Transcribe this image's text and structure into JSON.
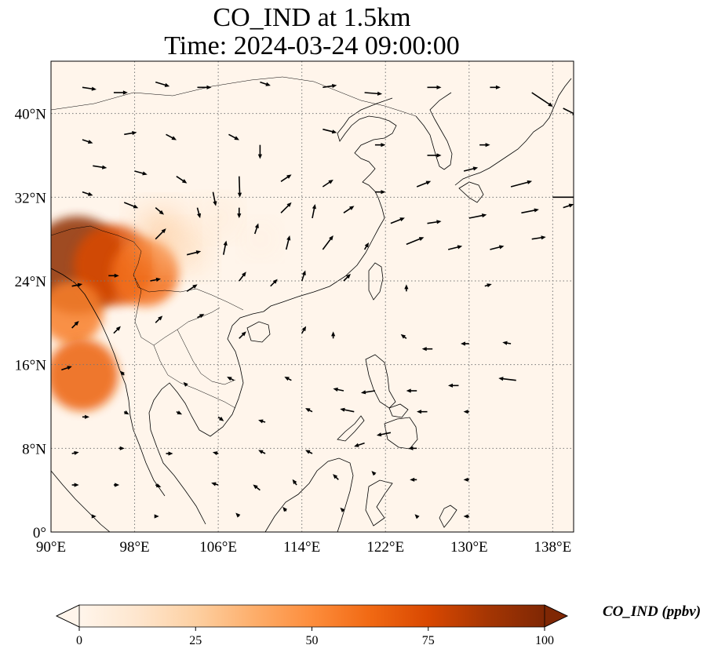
{
  "title": {
    "line1": "CO_IND at 1.5km",
    "line2": "Time: 2024-03-24 09:00:00"
  },
  "map": {
    "lon_range": [
      90,
      140
    ],
    "lat_range": [
      0,
      45
    ],
    "lon_ticks": [
      {
        "value": 90,
        "label": "90°E"
      },
      {
        "value": 98,
        "label": "98°E"
      },
      {
        "value": 106,
        "label": "106°E"
      },
      {
        "value": 114,
        "label": "114°E"
      },
      {
        "value": 122,
        "label": "122°E"
      },
      {
        "value": 130,
        "label": "130°E"
      },
      {
        "value": 138,
        "label": "138°E"
      }
    ],
    "lat_ticks": [
      {
        "value": 0,
        "label": "0°"
      },
      {
        "value": 8,
        "label": "8°N"
      },
      {
        "value": 16,
        "label": "16°N"
      },
      {
        "value": 24,
        "label": "24°N"
      },
      {
        "value": 32,
        "label": "32°N"
      },
      {
        "value": 40,
        "label": "40°N"
      }
    ],
    "gridlines": true,
    "background_color": "#fff5eb"
  },
  "colorbar": {
    "label": "CO_IND (ppbv)",
    "min": 0,
    "max": 100,
    "extend": "both",
    "ticks": [
      {
        "value": 0,
        "label": "0"
      },
      {
        "value": 25,
        "label": "25"
      },
      {
        "value": 50,
        "label": "50"
      },
      {
        "value": 75,
        "label": "75"
      },
      {
        "value": 100,
        "label": "100"
      }
    ],
    "colormap": [
      "#fff5eb",
      "#fee6ce",
      "#fdd0a2",
      "#fdae6b",
      "#fd8d3c",
      "#f16913",
      "#d94801",
      "#a63603",
      "#7f2704"
    ]
  },
  "plumes": [
    {
      "lon": 92.5,
      "lat": 25.5,
      "value": 95
    },
    {
      "lon": 96,
      "lat": 25.5,
      "value": 75
    },
    {
      "lon": 99,
      "lat": 24.8,
      "value": 60
    },
    {
      "lon": 92,
      "lat": 21,
      "value": 55
    },
    {
      "lon": 93,
      "lat": 15,
      "value": 65
    },
    {
      "lon": 100.5,
      "lat": 28.5,
      "value": 30
    },
    {
      "lon": 103,
      "lat": 27,
      "value": 22
    },
    {
      "lon": 106,
      "lat": 30,
      "value": 15
    },
    {
      "lon": 110,
      "lat": 28,
      "value": 10
    }
  ],
  "wind_vectors": [
    {
      "lon": 93,
      "lat": 42.5,
      "u": 2,
      "v": -0.3
    },
    {
      "lon": 96,
      "lat": 42,
      "u": 2,
      "v": 0
    },
    {
      "lon": 100,
      "lat": 43,
      "u": 2,
      "v": -0.6
    },
    {
      "lon": 104,
      "lat": 42.5,
      "u": 2,
      "v": 0
    },
    {
      "lon": 110,
      "lat": 43,
      "u": 1.5,
      "v": -0.5
    },
    {
      "lon": 116,
      "lat": 42.5,
      "u": 2,
      "v": 0.3
    },
    {
      "lon": 120,
      "lat": 42,
      "u": 2.5,
      "v": -0.2
    },
    {
      "lon": 126,
      "lat": 42.5,
      "u": 2,
      "v": 0
    },
    {
      "lon": 132,
      "lat": 42.5,
      "u": 1.5,
      "v": 0
    },
    {
      "lon": 136,
      "lat": 42,
      "u": 3,
      "v": -2
    },
    {
      "lon": 139,
      "lat": 40.5,
      "u": 2,
      "v": -1
    },
    {
      "lon": 93,
      "lat": 37.5,
      "u": 1.5,
      "v": -0.5
    },
    {
      "lon": 97,
      "lat": 38,
      "u": 1.8,
      "v": 0.3
    },
    {
      "lon": 101,
      "lat": 38,
      "u": 1.5,
      "v": -0.8
    },
    {
      "lon": 107,
      "lat": 38,
      "u": 1.5,
      "v": -0.8
    },
    {
      "lon": 110,
      "lat": 37,
      "u": 0,
      "v": -2
    },
    {
      "lon": 116,
      "lat": 38.5,
      "u": 2,
      "v": -0.5
    },
    {
      "lon": 121,
      "lat": 37,
      "u": 1.5,
      "v": 0
    },
    {
      "lon": 126,
      "lat": 36,
      "u": 2,
      "v": 0
    },
    {
      "lon": 131,
      "lat": 37,
      "u": 1.5,
      "v": 0
    },
    {
      "lon": 94,
      "lat": 35,
      "u": 2,
      "v": -0.3
    },
    {
      "lon": 98,
      "lat": 34.5,
      "u": 1.8,
      "v": -0.5
    },
    {
      "lon": 102,
      "lat": 34,
      "u": 1.5,
      "v": -1
    },
    {
      "lon": 105.5,
      "lat": 32.5,
      "u": 0.4,
      "v": -2
    },
    {
      "lon": 108,
      "lat": 34,
      "u": 0.1,
      "v": -3
    },
    {
      "lon": 112,
      "lat": 33.5,
      "u": 1.5,
      "v": 1
    },
    {
      "lon": 116,
      "lat": 33,
      "u": 1.5,
      "v": 1
    },
    {
      "lon": 121,
      "lat": 32.5,
      "u": 1.5,
      "v": 0
    },
    {
      "lon": 125,
      "lat": 33,
      "u": 2,
      "v": 0.8
    },
    {
      "lon": 129.5,
      "lat": 34.5,
      "u": 2,
      "v": 0.5
    },
    {
      "lon": 134,
      "lat": 33,
      "u": 3,
      "v": 0.8
    },
    {
      "lon": 138,
      "lat": 32,
      "u": 4,
      "v": 0
    },
    {
      "lon": 93,
      "lat": 32.5,
      "u": 1.5,
      "v": -0.5
    },
    {
      "lon": 97,
      "lat": 31.5,
      "u": 2,
      "v": -0.8
    },
    {
      "lon": 100,
      "lat": 31,
      "u": 1.2,
      "v": -1
    },
    {
      "lon": 104,
      "lat": 31,
      "u": 0.4,
      "v": -1.5
    },
    {
      "lon": 108,
      "lat": 31,
      "u": 0,
      "v": -1.5
    },
    {
      "lon": 112,
      "lat": 30.5,
      "u": 1.5,
      "v": 1.5
    },
    {
      "lon": 115,
      "lat": 30,
      "u": 0.4,
      "v": 2
    },
    {
      "lon": 118,
      "lat": 30.5,
      "u": 1.5,
      "v": 1
    },
    {
      "lon": 122.5,
      "lat": 29.5,
      "u": 2,
      "v": 0.8
    },
    {
      "lon": 126,
      "lat": 29.5,
      "u": 2,
      "v": 0.3
    },
    {
      "lon": 130,
      "lat": 30,
      "u": 2.5,
      "v": 0.5
    },
    {
      "lon": 135,
      "lat": 30.5,
      "u": 2.5,
      "v": 0.5
    },
    {
      "lon": 139,
      "lat": 31,
      "u": 1.5,
      "v": 0.5
    },
    {
      "lon": 100,
      "lat": 28,
      "u": 1.5,
      "v": 1.5
    },
    {
      "lon": 103,
      "lat": 26.5,
      "u": 2,
      "v": 0.5
    },
    {
      "lon": 106.5,
      "lat": 26.5,
      "u": 0.4,
      "v": 2
    },
    {
      "lon": 109.5,
      "lat": 28.5,
      "u": 0.5,
      "v": 1.5
    },
    {
      "lon": 112.5,
      "lat": 27,
      "u": 0.5,
      "v": 2
    },
    {
      "lon": 116,
      "lat": 27,
      "u": 1.5,
      "v": 2
    },
    {
      "lon": 120,
      "lat": 27,
      "u": 0.6,
      "v": 1
    },
    {
      "lon": 124,
      "lat": 27.5,
      "u": 2.5,
      "v": 1
    },
    {
      "lon": 128,
      "lat": 27,
      "u": 2,
      "v": 0.5
    },
    {
      "lon": 132,
      "lat": 27,
      "u": 2,
      "v": 0.5
    },
    {
      "lon": 136,
      "lat": 28,
      "u": 2,
      "v": 0.3
    },
    {
      "lon": 92,
      "lat": 23.5,
      "u": 1.5,
      "v": 0.3
    },
    {
      "lon": 95.5,
      "lat": 24.5,
      "u": 1.5,
      "v": 0
    },
    {
      "lon": 99.5,
      "lat": 24,
      "u": 1.5,
      "v": 0.3
    },
    {
      "lon": 103,
      "lat": 23,
      "u": 1.5,
      "v": 1
    },
    {
      "lon": 108,
      "lat": 24,
      "u": 1,
      "v": 1.3
    },
    {
      "lon": 111,
      "lat": 23.5,
      "u": 1,
      "v": 1
    },
    {
      "lon": 114,
      "lat": 24,
      "u": 0.5,
      "v": 1.5
    },
    {
      "lon": 118,
      "lat": 24,
      "u": 1,
      "v": 1
    },
    {
      "lon": 124,
      "lat": 23,
      "u": 0,
      "v": 1
    },
    {
      "lon": 131.5,
      "lat": 23.5,
      "u": 1,
      "v": 0.3
    },
    {
      "lon": 92,
      "lat": 19.5,
      "u": 1,
      "v": 1
    },
    {
      "lon": 96,
      "lat": 19,
      "u": 1,
      "v": 1
    },
    {
      "lon": 100,
      "lat": 20,
      "u": 1,
      "v": 1
    },
    {
      "lon": 104,
      "lat": 20.5,
      "u": 1,
      "v": 0.5
    },
    {
      "lon": 108,
      "lat": 18.5,
      "u": 1,
      "v": 1
    },
    {
      "lon": 114,
      "lat": 19,
      "u": 0.6,
      "v": 1
    },
    {
      "lon": 117,
      "lat": 18.5,
      "u": 0,
      "v": 1
    },
    {
      "lon": 124,
      "lat": 18.5,
      "u": -0.8,
      "v": 0.6
    },
    {
      "lon": 126.5,
      "lat": 17.5,
      "u": -1.5,
      "v": 0
    },
    {
      "lon": 130,
      "lat": 18,
      "u": -1.2,
      "v": 0
    },
    {
      "lon": 134,
      "lat": 18,
      "u": -1.2,
      "v": 0.2
    },
    {
      "lon": 91,
      "lat": 15.5,
      "u": 1.5,
      "v": 0.5
    },
    {
      "lon": 97,
      "lat": 15,
      "u": -0.6,
      "v": 0.6
    },
    {
      "lon": 103,
      "lat": 14,
      "u": -0.5,
      "v": 0.5
    },
    {
      "lon": 107.5,
      "lat": 14.5,
      "u": -1,
      "v": 0.5
    },
    {
      "lon": 113,
      "lat": 14.5,
      "u": -1,
      "v": 0.5
    },
    {
      "lon": 118,
      "lat": 13.5,
      "u": -1.5,
      "v": 0.3
    },
    {
      "lon": 121,
      "lat": 13.5,
      "u": -2,
      "v": -0.3
    },
    {
      "lon": 125,
      "lat": 13.5,
      "u": -1.5,
      "v": 0
    },
    {
      "lon": 129,
      "lat": 14,
      "u": -1.5,
      "v": 0
    },
    {
      "lon": 134.5,
      "lat": 14.5,
      "u": -2.5,
      "v": 0.3
    },
    {
      "lon": 93,
      "lat": 11,
      "u": 1,
      "v": 0
    },
    {
      "lon": 97,
      "lat": 11.5,
      "u": 0.7,
      "v": -0.4
    },
    {
      "lon": 102,
      "lat": 11.5,
      "u": 0.8,
      "v": -0.4
    },
    {
      "lon": 106,
      "lat": 11,
      "u": 0.8,
      "v": -0.6
    },
    {
      "lon": 110.5,
      "lat": 10.5,
      "u": -1,
      "v": 0.3
    },
    {
      "lon": 115,
      "lat": 11.5,
      "u": -1,
      "v": 0.5
    },
    {
      "lon": 119,
      "lat": 11.5,
      "u": -2,
      "v": 0.4
    },
    {
      "lon": 122.5,
      "lat": 9.5,
      "u": -2,
      "v": -0.4
    },
    {
      "lon": 126,
      "lat": 11.5,
      "u": -1.5,
      "v": 0
    },
    {
      "lon": 130,
      "lat": 11.5,
      "u": -0.8,
      "v": 0
    },
    {
      "lon": 92,
      "lat": 7.5,
      "u": 1,
      "v": 0.2
    },
    {
      "lon": 96.5,
      "lat": 8,
      "u": 0.8,
      "v": 0
    },
    {
      "lon": 101,
      "lat": 7.5,
      "u": 1,
      "v": 0
    },
    {
      "lon": 106,
      "lat": 7.5,
      "u": -0.8,
      "v": 0.2
    },
    {
      "lon": 110.5,
      "lat": 7.5,
      "u": -1,
      "v": 0.5
    },
    {
      "lon": 115,
      "lat": 7.5,
      "u": -1,
      "v": 0.5
    },
    {
      "lon": 120,
      "lat": 8.5,
      "u": -1.5,
      "v": -0.5
    },
    {
      "lon": 125,
      "lat": 8,
      "u": -1.2,
      "v": 0
    },
    {
      "lon": 92,
      "lat": 4.5,
      "u": 1,
      "v": 0
    },
    {
      "lon": 96,
      "lat": 4.5,
      "u": 0.8,
      "v": 0
    },
    {
      "lon": 100,
      "lat": 4.5,
      "u": 0.8,
      "v": -0.3
    },
    {
      "lon": 106,
      "lat": 4.5,
      "u": -1,
      "v": 0.3
    },
    {
      "lon": 110,
      "lat": 4,
      "u": -1,
      "v": 0.8
    },
    {
      "lon": 113.5,
      "lat": 4.5,
      "u": -0.6,
      "v": 0.8
    },
    {
      "lon": 117.5,
      "lat": 5,
      "u": -0.8,
      "v": 0.8
    },
    {
      "lon": 121,
      "lat": 5.5,
      "u": -0.5,
      "v": 0.5
    },
    {
      "lon": 125,
      "lat": 5,
      "u": -1,
      "v": 0
    },
    {
      "lon": 130,
      "lat": 5,
      "u": -0.8,
      "v": 0
    },
    {
      "lon": 94,
      "lat": 1.5,
      "u": 0.5,
      "v": 0
    },
    {
      "lon": 100,
      "lat": 1.5,
      "u": 0.5,
      "v": 0
    },
    {
      "lon": 108,
      "lat": 1.5,
      "u": -0.5,
      "v": 0.5
    },
    {
      "lon": 112.5,
      "lat": 2,
      "u": -0.5,
      "v": 0.6
    },
    {
      "lon": 118,
      "lat": 2,
      "u": -0.5,
      "v": 0.5
    },
    {
      "lon": 125,
      "lat": 1.5,
      "u": -0.3,
      "v": 0.3
    },
    {
      "lon": 130,
      "lat": 1.5,
      "u": -0.8,
      "v": 0
    }
  ]
}
